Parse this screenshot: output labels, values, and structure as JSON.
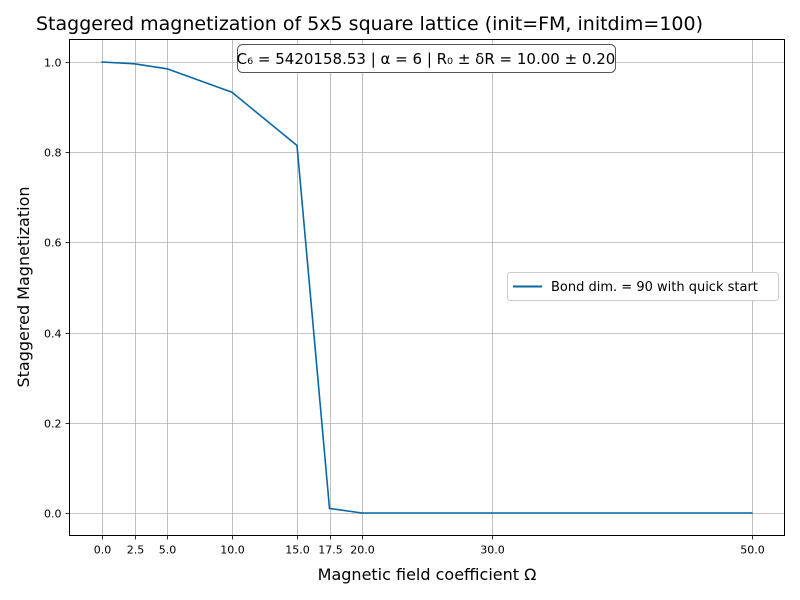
{
  "chart_data": {
    "type": "line",
    "title": "Staggered magnetization of 5x5 square lattice (init=FM, initdim=100)",
    "xlabel": "Magnetic field coefficient Ω",
    "ylabel": "Staggered Magnetization",
    "annotation": "C₆ = 5420158.53 | α = 6 | R₀ ± δR = 10.00 ± 0.20",
    "x_ticks": [
      0.0,
      2.5,
      5.0,
      10.0,
      15.0,
      17.5,
      20.0,
      30.0,
      50.0
    ],
    "x_tick_labels": [
      "0.0",
      "2.5",
      "5.0",
      "10.0",
      "15.0",
      "17.5",
      "20.0",
      "30.0",
      "50.0"
    ],
    "y_ticks": [
      0.0,
      0.2,
      0.4,
      0.6,
      0.8,
      1.0
    ],
    "y_tick_labels": [
      "0.0",
      "0.2",
      "0.4",
      "0.6",
      "0.8",
      "1.0"
    ],
    "xlim": [
      -2.5,
      52.5
    ],
    "ylim": [
      -0.05,
      1.05
    ],
    "grid": true,
    "legend_position": "right",
    "series": [
      {
        "name": "Bond dim. = 90 with quick start",
        "color": "#0868a6",
        "x": [
          0.0,
          2.5,
          5.0,
          10.0,
          15.0,
          17.5,
          20.0,
          30.0,
          50.0
        ],
        "y": [
          1.0,
          0.996,
          0.985,
          0.933,
          0.815,
          0.01,
          0.0,
          0.0,
          0.0
        ]
      }
    ]
  }
}
